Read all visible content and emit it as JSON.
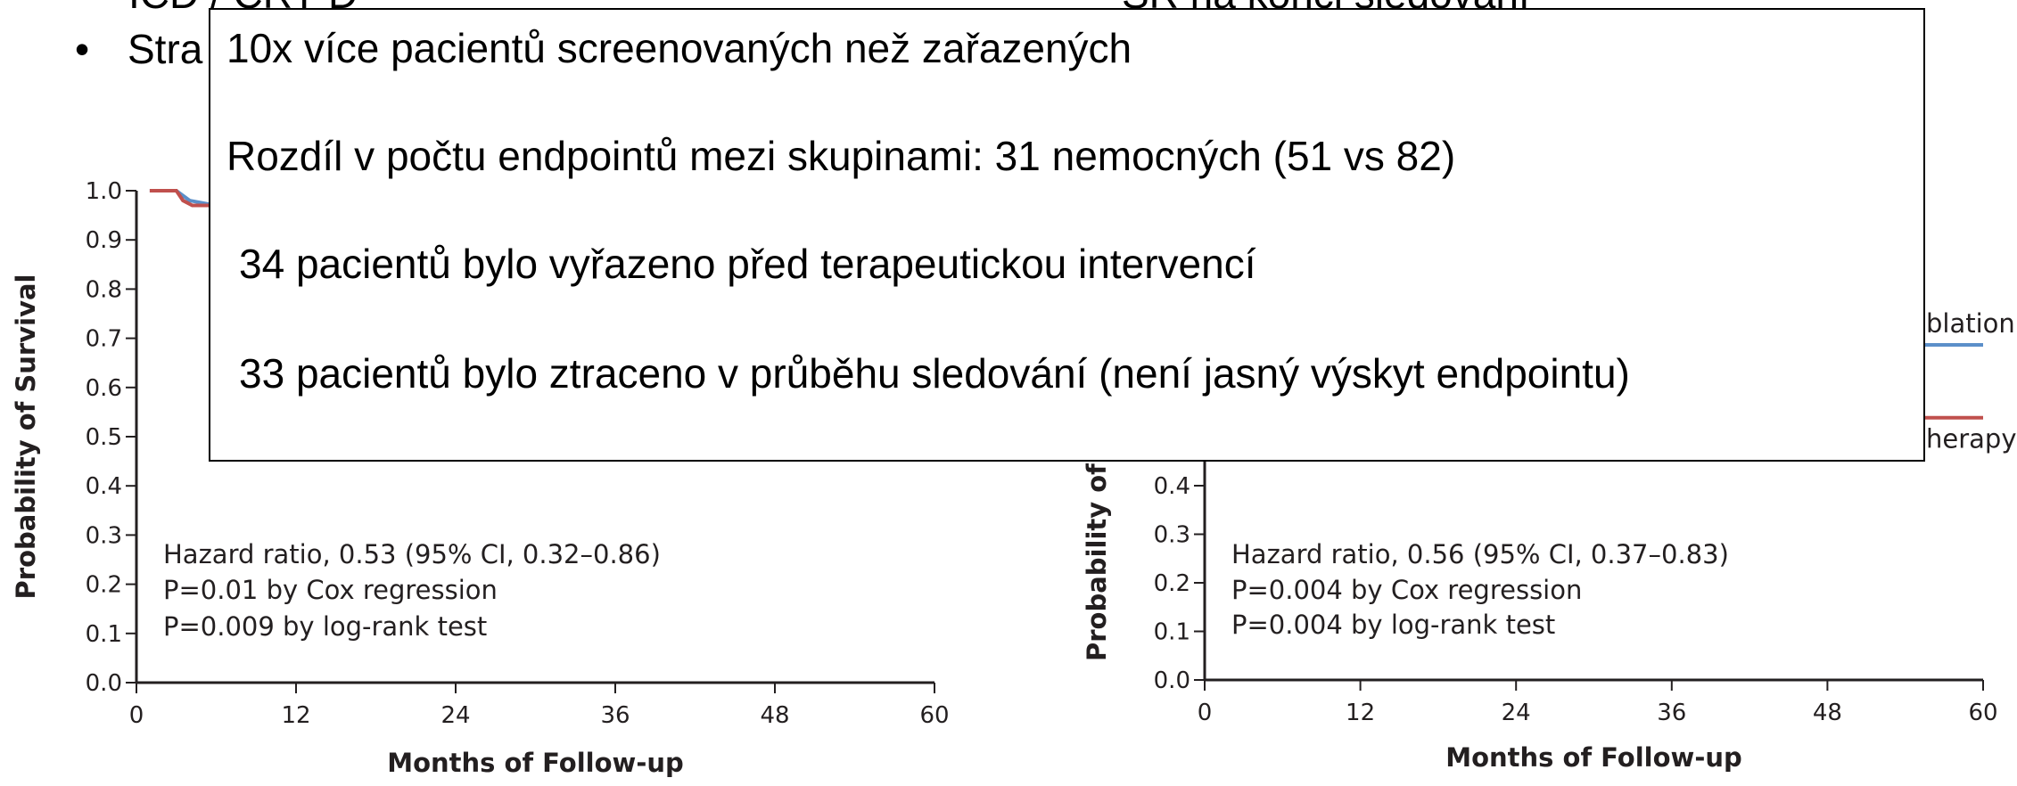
{
  "slide": {
    "top_left": "ICD / CRT-D",
    "top_right": "SR na konci sledování",
    "bullet": "Stra"
  },
  "chart_data": [
    {
      "type": "line",
      "xlabel": "Months of Follow-up",
      "ylabel": "Probability of Survival",
      "xlim": [
        0,
        60
      ],
      "xticks": [
        0,
        12,
        24,
        36,
        48,
        60
      ],
      "ylim": [
        0,
        1
      ],
      "yticks": [
        {
          "value": 0,
          "label": "0.0"
        },
        0.1,
        0.2,
        0.3,
        0.4,
        0.5,
        0.6,
        0.7,
        0.8,
        0.9,
        {
          "value": 1,
          "label": "1.0"
        }
      ],
      "annotations": [
        "Hazard ratio, 0.53 (95% CI, 0.32–0.86)",
        "P=0.01 by Cox regression",
        "P=0.009 by log-rank test"
      ],
      "series": [
        {
          "color": "#5b8fc9",
          "x": [
            1,
            3,
            3.5,
            4,
            6
          ],
          "values": [
            1,
            1,
            0.99,
            0.98,
            0.97
          ]
        },
        {
          "color": "#c0504d",
          "x": [
            1,
            3,
            3.5,
            4.2,
            6
          ],
          "values": [
            1,
            1,
            0.98,
            0.97,
            0.97
          ]
        }
      ]
    },
    {
      "type": "line",
      "xlabel": "Months of Follow-up",
      "ylabel": "Probability of H",
      "xlim": [
        0,
        60
      ],
      "xticks": [
        0,
        12,
        24,
        36,
        48,
        60
      ],
      "ylim": [
        0,
        1
      ],
      "yticks": [
        {
          "value": 0,
          "label": "0.0"
        },
        0.1,
        0.2,
        0.3,
        0.4
      ],
      "annotations": [
        "Hazard ratio, 0.56 (95% CI, 0.37–0.83)",
        "P=0.004 by Cox regression",
        "P=0.004 by log-rank test"
      ],
      "end_labels": [
        "blation",
        "herapy"
      ],
      "series": [
        {
          "color": "#5b8fc9",
          "x": [
            40,
            60
          ],
          "values": [
            0.69,
            0.69
          ]
        },
        {
          "color": "#c0504d",
          "x": [
            40,
            60
          ],
          "values": [
            0.54,
            0.54
          ]
        }
      ]
    }
  ],
  "popup": {
    "lines": [
      "10x více pacientů screenovaných než zařazených",
      "Rozdíl v počtu endpointů mezi skupinami: 31 nemocných (51 vs 82)",
      "34 pacientů bylo vyřazeno před terapeutickou intervencí",
      "33 pacientů bylo ztraceno v průběhu sledování (není jasný výskyt endpointu)"
    ]
  }
}
